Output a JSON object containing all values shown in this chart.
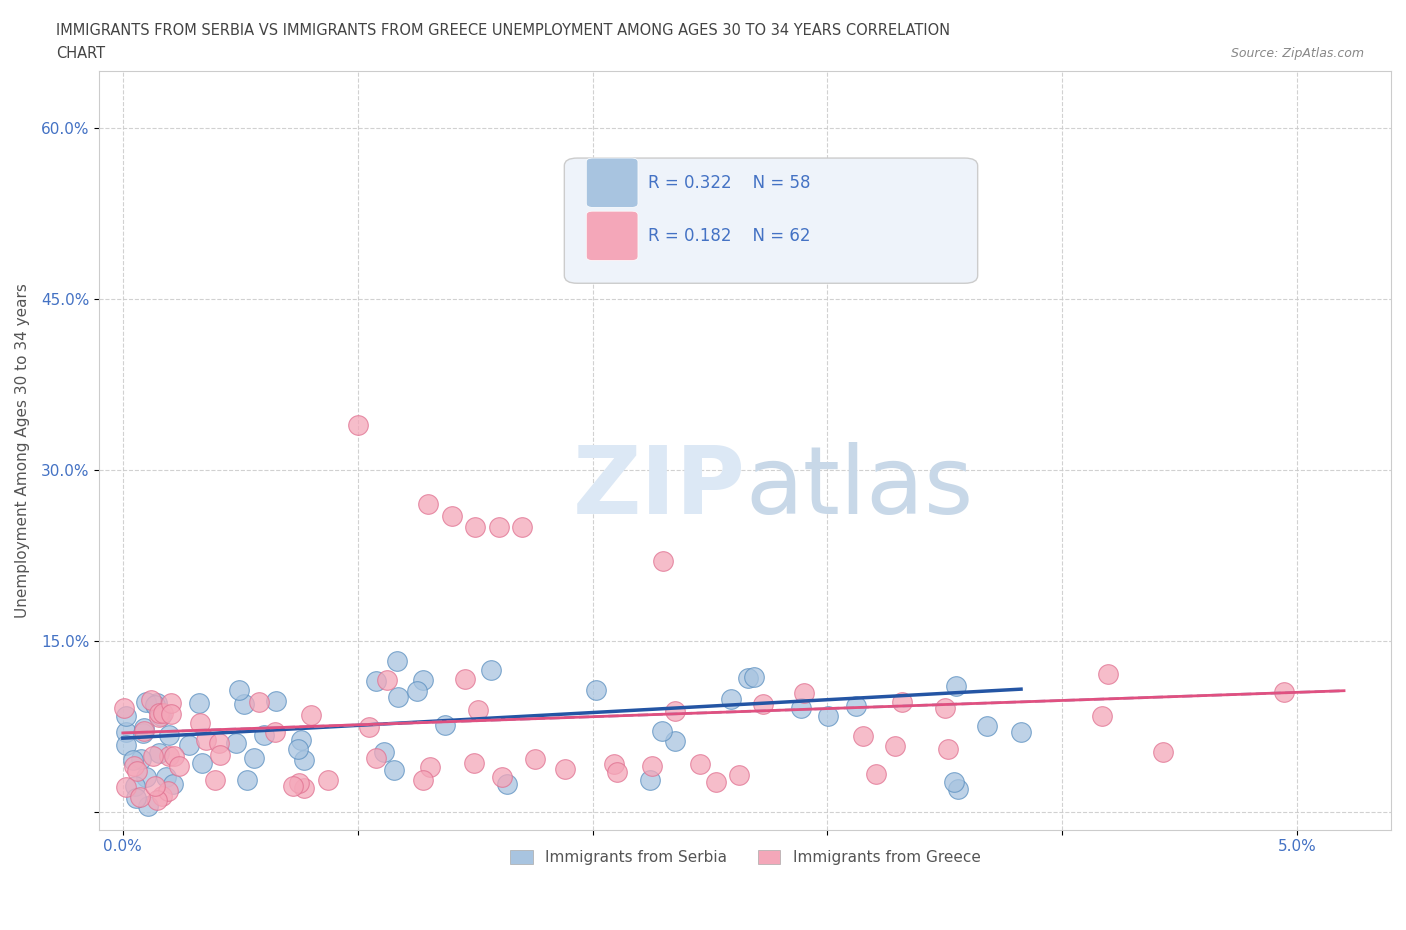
{
  "title_line1": "IMMIGRANTS FROM SERBIA VS IMMIGRANTS FROM GREECE UNEMPLOYMENT AMONG AGES 30 TO 34 YEARS CORRELATION",
  "title_line2": "CHART",
  "source_text": "Source: ZipAtlas.com",
  "ylabel": "Unemployment Among Ages 30 to 34 years",
  "x_ticks": [
    0.0,
    0.01,
    0.02,
    0.03,
    0.04,
    0.05
  ],
  "x_tick_labels": [
    "0.0%",
    "",
    "",
    "",
    "",
    "5.0%"
  ],
  "y_ticks": [
    0.0,
    0.15,
    0.3,
    0.45,
    0.6
  ],
  "y_tick_labels": [
    "",
    "15.0%",
    "30.0%",
    "45.0%",
    "60.0%"
  ],
  "xlim": [
    -0.001,
    0.054
  ],
  "ylim": [
    -0.015,
    0.65
  ],
  "serbia_color": "#a8c4e0",
  "greece_color": "#f4a7b9",
  "serbia_edge_color": "#5a8fc0",
  "greece_edge_color": "#e07090",
  "serbia_line_color": "#2455a4",
  "greece_line_color": "#e05080",
  "dashed_line_color": "#aaaacc",
  "serbia_R": 0.322,
  "serbia_N": 58,
  "greece_R": 0.182,
  "greece_N": 62,
  "background_color": "#ffffff",
  "grid_color": "#cccccc",
  "watermark_color": "#dce8f5",
  "legend_box_color": "#eef3fa"
}
